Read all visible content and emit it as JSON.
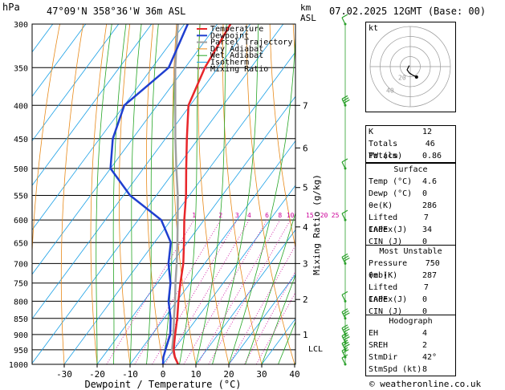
{
  "header": {
    "pressure_unit": "hPa",
    "location": "47°09'N  358°36'W  36m  ASL",
    "height_unit_1": "km",
    "height_unit_2": "ASL",
    "date": "07.02.2025  12GMT  (Base: 00)"
  },
  "colors": {
    "temperature": "#e8262a",
    "dewpoint": "#1f3fd0",
    "parcel": "#a0a0a0",
    "dry_adiabat": "#e88a1a",
    "wet_adiabat": "#26a626",
    "isotherm": "#1aa0e6",
    "mixing_ratio": "#cc0099"
  },
  "chart_data": {
    "type": "line",
    "title": "",
    "xlabel": "Dewpoint / Temperature (°C)",
    "ylabel": "Mixing Ratio (g/kg)",
    "x_ticks": [
      -30,
      -20,
      -10,
      0,
      10,
      20,
      30,
      40
    ],
    "pressure_ticks": [
      300,
      350,
      400,
      450,
      500,
      550,
      600,
      650,
      700,
      750,
      800,
      850,
      900,
      950,
      1000
    ],
    "xlim": [
      -40,
      40
    ],
    "plim": [
      1000,
      300
    ],
    "legend": [
      "Temperature",
      "Dewpoint",
      "Parcel Trajectory",
      "Dry Adiabat",
      "Wet Adiabat",
      "Isotherm",
      "Mixing Ratio"
    ],
    "legend_placement": "top-left",
    "km_labels": [
      {
        "km": "1",
        "p": 900
      },
      {
        "km": "2",
        "p": 795
      },
      {
        "km": "3",
        "p": 700
      },
      {
        "km": "4",
        "p": 615
      },
      {
        "km": "5",
        "p": 535
      },
      {
        "km": "6",
        "p": 465
      },
      {
        "km": "7",
        "p": 400
      }
    ],
    "lcl_label": "LCL",
    "lcl_p": 945,
    "mixing_ratio_labels": [
      "1",
      "2",
      "3",
      "4",
      "6",
      "8",
      "10",
      "15",
      "20",
      "25"
    ],
    "mixing_ratio_values": [
      1,
      2,
      3,
      4,
      6,
      8,
      10,
      15,
      20,
      25
    ],
    "series": [
      {
        "name": "Temperature",
        "p": [
          1000,
          975,
          950,
          925,
          900,
          850,
          800,
          750,
          700,
          650,
          600,
          550,
          500,
          450,
          400,
          350,
          300
        ],
        "t": [
          4.6,
          2.0,
          0.0,
          -1.5,
          -3.0,
          -6.0,
          -9.5,
          -13.0,
          -16.5,
          -21.0,
          -26.0,
          -31.0,
          -37.0,
          -43.5,
          -50.5,
          -54.0,
          -56.0
        ]
      },
      {
        "name": "Dewpoint",
        "p": [
          1000,
          975,
          950,
          925,
          900,
          850,
          800,
          750,
          700,
          650,
          600,
          550,
          500,
          450,
          400,
          350,
          300
        ],
        "t": [
          0.0,
          -1.5,
          -2.5,
          -3.5,
          -4.5,
          -8.0,
          -12.5,
          -16.0,
          -21.0,
          -25.0,
          -33.0,
          -48.0,
          -60.0,
          -66.0,
          -70.0,
          -65.0,
          -69.0
        ]
      },
      {
        "name": "Parcel Trajectory",
        "p": [
          1000,
          950,
          900,
          850,
          800,
          750,
          700,
          650,
          600,
          550,
          500,
          450,
          400,
          350,
          300
        ],
        "t": [
          4.6,
          -0.5,
          -3.5,
          -7.0,
          -10.5,
          -14.5,
          -18.5,
          -23.0,
          -28.0,
          -33.5,
          -40.0,
          -47.0,
          -54.5,
          -63.0,
          -72.0
        ]
      }
    ]
  },
  "hodograph": {
    "label": "kt",
    "rings": [
      10,
      20,
      30,
      40
    ],
    "ring_labels": [
      "20",
      "40"
    ],
    "points_u": [
      -1,
      -2,
      -3,
      -1,
      2,
      4,
      6
    ],
    "points_v": [
      -1,
      1,
      3,
      6,
      8,
      9,
      10
    ]
  },
  "wind_profile": [
    {
      "p": 300,
      "dir": 180,
      "spd": 5
    },
    {
      "p": 400,
      "dir": 200,
      "spd": 30
    },
    {
      "p": 500,
      "dir": 190,
      "spd": 10
    },
    {
      "p": 600,
      "dir": 190,
      "spd": 10
    },
    {
      "p": 700,
      "dir": 200,
      "spd": 30
    },
    {
      "p": 800,
      "dir": 190,
      "spd": 10
    },
    {
      "p": 850,
      "dir": 200,
      "spd": 30
    },
    {
      "p": 900,
      "dir": 190,
      "spd": 25
    },
    {
      "p": 925,
      "dir": 190,
      "spd": 25
    },
    {
      "p": 950,
      "dir": 190,
      "spd": 25
    },
    {
      "p": 975,
      "dir": 200,
      "spd": 20
    },
    {
      "p": 1000,
      "dir": 42,
      "spd": 8
    }
  ],
  "indices": {
    "rows": [
      {
        "k": "K",
        "v": "12"
      },
      {
        "k": "Totals Totals",
        "v": "46"
      },
      {
        "k": "PW (cm)",
        "v": "0.86"
      }
    ],
    "surface_title": "Surface",
    "surface": [
      {
        "k": "Temp (°C)",
        "v": "4.6"
      },
      {
        "k": "Dewp (°C)",
        "v": "0"
      },
      {
        "k": "θe(K)",
        "v": "286"
      },
      {
        "k": "Lifted Index",
        "v": "7"
      },
      {
        "k": "CAPE (J)",
        "v": "34"
      },
      {
        "k": "CIN (J)",
        "v": "0"
      }
    ],
    "unstable_title": "Most Unstable",
    "unstable": [
      {
        "k": "Pressure (mb)",
        "v": "750"
      },
      {
        "k": "θe (K)",
        "v": "287"
      },
      {
        "k": "Lifted Index",
        "v": "7"
      },
      {
        "k": "CAPE (J)",
        "v": "0"
      },
      {
        "k": "CIN (J)",
        "v": "0"
      }
    ],
    "hodo_title": "Hodograph",
    "hodo": [
      {
        "k": "EH",
        "v": "4"
      },
      {
        "k": "SREH",
        "v": "2"
      },
      {
        "k": "StmDir",
        "v": "42°"
      },
      {
        "k": "StmSpd (kt)",
        "v": "8"
      }
    ]
  },
  "copyright": "© weatheronline.co.uk"
}
